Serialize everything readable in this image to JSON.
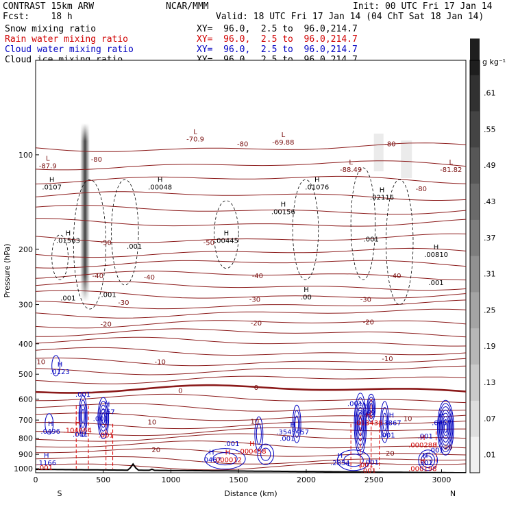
{
  "header": {
    "model": "CONTRAST 15km ARW",
    "center": "NCAR/MMM",
    "init": "Init: 00 UTC Fri 17 Jan 14",
    "fcst": "Fcst:    18 h",
    "valid": "Valid: 18 UTC Fri 17 Jan 14 (04 ChT Sat 18 Jan 14)"
  },
  "legend": [
    {
      "name": "Snow mixing ratio",
      "xy": "XY=  96.0,  2.5 to  96.0,214.7",
      "color": "#000000"
    },
    {
      "name": "Rain water mixing ratio",
      "xy": "XY=  96.0,  2.5 to  96.0,214.7",
      "color": "#d00000"
    },
    {
      "name": "Cloud water mixing ratio",
      "xy": "XY=  96.0,  2.5 to  96.0,214.7",
      "color": "#0000c0"
    },
    {
      "name": "Cloud ice mixing ratio",
      "xy": "XY=  96.0,  2.5 to  96.0,214.7",
      "color": "#000000"
    }
  ],
  "chart_data": {
    "type": "line",
    "xlabel": "Distance (km)",
    "ylabel": "Pressure (hPa)",
    "x_ticks": [
      "0",
      "500",
      "1000",
      "1500",
      "2000",
      "2500",
      "3000"
    ],
    "y_ticks": [
      "100",
      "200",
      "300",
      "400",
      "500",
      "600",
      "700",
      "800",
      "900",
      "1000"
    ],
    "xlim": [
      0,
      3180
    ],
    "ylim": [
      1030,
      50
    ],
    "y_scale": "log",
    "x_end_labels": [
      "S",
      "N"
    ],
    "colorbar_unit": "g kg⁻¹",
    "colorbar_ticks": [
      ".01",
      ".07",
      ".13",
      ".19",
      ".25",
      ".31",
      ".37",
      ".43",
      ".49",
      ".55",
      ".61"
    ],
    "temperature_contours": [
      {
        "level": -80,
        "label": "-80",
        "x": 450,
        "p": 103
      },
      {
        "level": -80,
        "label": "-80",
        "x": 1530,
        "p": 92
      },
      {
        "level": -80,
        "label": "-80",
        "x": 2620,
        "p": 92
      },
      {
        "level": -80,
        "label": "-80",
        "x": 2850,
        "p": 128
      },
      {
        "level": -50,
        "label": "-50",
        "x": 520,
        "p": 190
      },
      {
        "level": -50,
        "label": "-50",
        "x": 1280,
        "p": 190
      },
      {
        "level": -40,
        "label": "-40",
        "x": 460,
        "p": 242
      },
      {
        "level": -40,
        "label": "-40",
        "x": 840,
        "p": 245
      },
      {
        "level": -40,
        "label": "-40",
        "x": 1640,
        "p": 242
      },
      {
        "level": -40,
        "label": "-40",
        "x": 2660,
        "p": 242
      },
      {
        "level": -30,
        "label": "-30",
        "x": 650,
        "p": 295
      },
      {
        "level": -30,
        "label": "-30",
        "x": 1620,
        "p": 288
      },
      {
        "level": -30,
        "label": "-30",
        "x": 2440,
        "p": 288
      },
      {
        "level": -20,
        "label": "-20",
        "x": 520,
        "p": 345
      },
      {
        "level": -20,
        "label": "-20",
        "x": 1630,
        "p": 343
      },
      {
        "level": -20,
        "label": "-20",
        "x": 2460,
        "p": 340
      },
      {
        "level": -10,
        "label": "-10",
        "x": 30,
        "p": 455
      },
      {
        "level": -10,
        "label": "-10",
        "x": 920,
        "p": 455
      },
      {
        "level": -10,
        "label": "-10",
        "x": 2600,
        "p": 445
      },
      {
        "level": 0,
        "label": "0",
        "x": 1070,
        "p": 562
      },
      {
        "level": 0,
        "label": "0",
        "x": 1630,
        "p": 550
      },
      {
        "level": 10,
        "label": "10",
        "x": 860,
        "p": 708
      },
      {
        "level": 10,
        "label": "10",
        "x": 1620,
        "p": 705
      },
      {
        "level": 10,
        "label": "10",
        "x": 2750,
        "p": 690
      },
      {
        "level": 20,
        "label": "20",
        "x": 890,
        "p": 868
      },
      {
        "level": 20,
        "label": "20",
        "x": 2620,
        "p": 890
      },
      {
        "level": 20,
        "label": "20",
        "x": 3050,
        "p": 850
      }
    ],
    "extrema_labels": [
      {
        "kind": "L",
        "value": "-87.9",
        "x": 90,
        "p": 107,
        "color": "#7a1010"
      },
      {
        "kind": "H",
        "value": ".0107",
        "x": 120,
        "p": 125,
        "color": "#000000"
      },
      {
        "kind": "L",
        "value": "-70.9",
        "x": 1180,
        "p": 88,
        "color": "#7a1010"
      },
      {
        "kind": "L",
        "value": "-69.88",
        "x": 1830,
        "p": 90,
        "color": "#7a1010"
      },
      {
        "kind": "H",
        "value": ".00048",
        "x": 920,
        "p": 125,
        "color": "#000000"
      },
      {
        "kind": "H",
        "value": ".00156",
        "x": 1830,
        "p": 150,
        "color": "#000000"
      },
      {
        "kind": "H",
        "value": ".01076",
        "x": 2080,
        "p": 125,
        "color": "#000000"
      },
      {
        "kind": "L",
        "value": "-88.49",
        "x": 2330,
        "p": 110,
        "color": "#7a1010"
      },
      {
        "kind": "H",
        "value": ".02116",
        "x": 2560,
        "p": 135,
        "color": "#000000"
      },
      {
        "kind": "L",
        "value": "-81.82",
        "x": 3070,
        "p": 110,
        "color": "#7a1010"
      },
      {
        "kind": "H",
        "value": ".01563",
        "x": 240,
        "p": 185,
        "color": "#000000"
      },
      {
        "kind": "H",
        "value": ".00445",
        "x": 1410,
        "p": 185,
        "color": "#000000"
      },
      {
        "kind": "H",
        "value": ".00810",
        "x": 2960,
        "p": 205,
        "color": "#000000"
      },
      {
        "kind": "H",
        "value": ".00",
        "x": 2000,
        "p": 280,
        "color": "#000000"
      },
      {
        "kind": "H",
        "value": ".0123",
        "x": 180,
        "p": 485,
        "color": "#0000c0"
      },
      {
        "kind": "H",
        "value": ".7069",
        "x": 2440,
        "p": 655,
        "color": "#0000c0"
      },
      {
        "kind": "H",
        "value": ".3867",
        "x": 2630,
        "p": 705,
        "color": "#0000c0"
      },
      {
        "kind": "H",
        "value": ".6457",
        "x": 3000,
        "p": 705,
        "color": "#0000c0"
      },
      {
        "kind": "H",
        "value": ".0496",
        "x": 110,
        "p": 750,
        "color": "#0000c0"
      },
      {
        "kind": "H",
        "value": ".3545457",
        "x": 1900,
        "p": 755,
        "color": "#0000c0"
      },
      {
        "kind": "H",
        "value": ".1166",
        "x": 80,
        "p": 945,
        "color": "#0000c0"
      },
      {
        "kind": "H",
        "value": ".0467",
        "x": 1300,
        "p": 925,
        "color": "#0000c0"
      },
      {
        "kind": "H",
        "value": ".2854",
        "x": 2250,
        "p": 945,
        "color": "#0000c0"
      },
      {
        "kind": "H",
        "value": ".301",
        "x": 2880,
        "p": 945,
        "color": "#0000c0"
      },
      {
        "kind": "H",
        "value": ".104664",
        "x": 310,
        "p": 745,
        "color": "#d00000"
      },
      {
        "kind": "H",
        "value": ".013438",
        "x": 2460,
        "p": 705,
        "color": "#d00000"
      },
      {
        "kind": "H",
        "value": ".000458",
        "x": 1600,
        "p": 868,
        "color": "#d00000"
      },
      {
        "kind": "H",
        "value": ".000012",
        "x": 1420,
        "p": 925,
        "color": "#d00000"
      },
      {
        "kind": "H",
        "value": ".000288",
        "x": 2860,
        "p": 830,
        "color": "#d00000"
      },
      {
        "kind": "H",
        "value": ".000198",
        "x": 2860,
        "p": 988,
        "color": "#d00000"
      },
      {
        "kind": "H",
        "value": ".757",
        "x": 530,
        "p": 650,
        "color": "#0000c0"
      }
    ],
    "min_values": [
      {
        "value": ".001",
        "x": 70,
        "p": 990,
        "color": "#d00000"
      },
      {
        "value": ".001",
        "x": 520,
        "p": 780,
        "color": "#d00000"
      },
      {
        "value": ".001",
        "x": 2440,
        "p": 970,
        "color": "#d00000"
      },
      {
        "value": ".001",
        "x": 2460,
        "p": 1012,
        "color": "#d00000"
      },
      {
        "value": ".001",
        "x": 350,
        "p": 578,
        "color": "#0000c0"
      },
      {
        "value": ".001",
        "x": 330,
        "p": 775,
        "color": "#0000c0"
      },
      {
        "value": ".001",
        "x": 480,
        "p": 690,
        "color": "#0000c0"
      },
      {
        "value": ".001",
        "x": 1450,
        "p": 830,
        "color": "#0000c0"
      },
      {
        "value": ".001",
        "x": 1860,
        "p": 800,
        "color": "#0000c0"
      },
      {
        "value": ".001",
        "x": 2360,
        "p": 618,
        "color": "#0000c0"
      },
      {
        "value": ".001",
        "x": 2600,
        "p": 780,
        "color": "#0000c0"
      },
      {
        "value": ".001",
        "x": 2880,
        "p": 785,
        "color": "#0000c0"
      },
      {
        "value": ".001",
        "x": 2960,
        "p": 870,
        "color": "#0000c0"
      },
      {
        "value": ".001",
        "x": 2480,
        "p": 950,
        "color": "#0000c0"
      },
      {
        "value": ".001",
        "x": 240,
        "p": 285,
        "color": "#000000"
      },
      {
        "value": ".001",
        "x": 540,
        "p": 278,
        "color": "#000000"
      },
      {
        "value": ".001",
        "x": 730,
        "p": 195,
        "color": "#000000"
      },
      {
        "value": ".001",
        "x": 2480,
        "p": 185,
        "color": "#000000"
      },
      {
        "value": ".001",
        "x": 2960,
        "p": 255,
        "color": "#000000"
      }
    ]
  }
}
